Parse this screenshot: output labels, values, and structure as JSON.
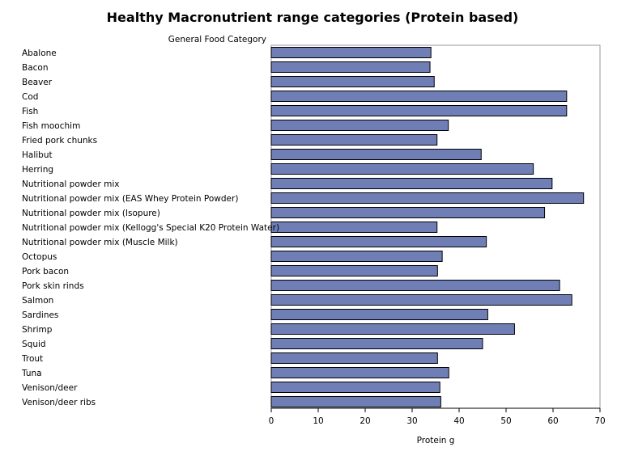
{
  "chart_data": {
    "type": "bar",
    "orientation": "horizontal",
    "title": "Healthy Macronutrient range categories (Protein based)",
    "ylabel": "General Food Category",
    "xlabel": "Protein g",
    "xlim": [
      0,
      70
    ],
    "xticks": [
      0,
      10,
      20,
      30,
      40,
      50,
      60,
      70
    ],
    "grid": false,
    "bar_color": "#6f7fb6",
    "bar_edge_color": "#000000",
    "categories": [
      "Abalone",
      "Bacon",
      "Beaver",
      "Cod",
      "Fish",
      "Fish moochim",
      "Fried pork chunks",
      "Halibut",
      "Herring",
      "Nutritional powder mix",
      "Nutritional powder mix (EAS Whey Protein Powder)",
      "Nutritional powder mix (Isopure)",
      "Nutritional powder mix (Kellogg's Special K20 Protein Water)",
      "Nutritional powder mix (Muscle Milk)",
      "Octopus",
      "Pork bacon",
      "Pork skin rinds",
      "Salmon",
      "Sardines",
      "Shrimp",
      "Squid",
      "Trout",
      "Tuna",
      "Venison/deer",
      "Venison/deer ribs"
    ],
    "values": [
      34.0,
      33.8,
      34.7,
      62.9,
      62.9,
      37.7,
      35.3,
      44.7,
      55.8,
      59.8,
      66.5,
      58.2,
      35.3,
      45.8,
      36.4,
      35.4,
      61.4,
      64.0,
      46.1,
      51.8,
      45.0,
      35.4,
      37.8,
      35.9,
      36.1
    ]
  }
}
